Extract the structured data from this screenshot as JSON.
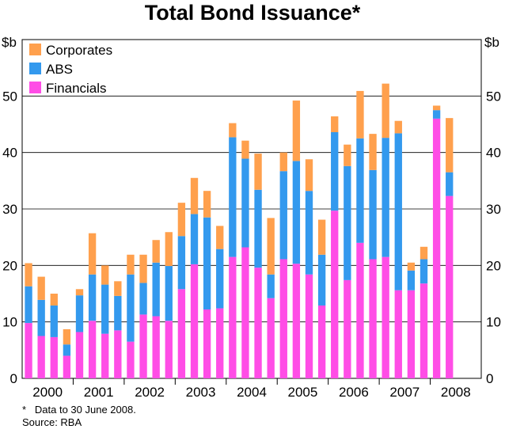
{
  "chart_data": {
    "type": "bar",
    "stacked": true,
    "title": "Total Bond Issuance*",
    "ylabel_left": "$b",
    "ylabel_right": "$b",
    "ylim": [
      0,
      60
    ],
    "yticks": [
      0,
      10,
      20,
      30,
      40,
      50
    ],
    "year_labels": [
      "2000",
      "2001",
      "2002",
      "2003",
      "2004",
      "2005",
      "2006",
      "2007",
      "2008"
    ],
    "quarters_per_year": 4,
    "series": [
      {
        "name": "Financials",
        "color": "#ff4de6",
        "values": [
          9.8,
          7.5,
          7.3,
          4.0,
          8.2,
          10.2,
          7.9,
          8.5,
          6.5,
          11.3,
          11.0,
          10.2,
          15.8,
          20.2,
          12.2,
          12.4,
          21.5,
          23.2,
          19.6,
          14.2,
          21.1,
          20.3,
          18.4,
          12.9,
          29.7,
          17.4,
          24.0,
          21.1,
          21.5,
          15.6,
          15.6,
          16.8,
          46.0,
          32.3
        ]
      },
      {
        "name": "ABS",
        "color": "#3399ee",
        "values": [
          6.5,
          6.4,
          5.6,
          2.0,
          6.5,
          8.2,
          8.7,
          6.1,
          11.9,
          5.6,
          9.5,
          9.7,
          9.4,
          8.9,
          16.3,
          10.5,
          21.2,
          15.7,
          13.8,
          4.2,
          15.6,
          18.2,
          14.8,
          9.0,
          13.9,
          20.2,
          18.5,
          15.8,
          21.1,
          27.8,
          3.5,
          4.3,
          1.5,
          4.2
        ]
      },
      {
        "name": "Corporates",
        "color": "#ffa04d",
        "values": [
          4.1,
          4.1,
          2.1,
          2.7,
          1.1,
          7.3,
          3.4,
          2.6,
          3.5,
          5.0,
          4.0,
          6.0,
          5.9,
          6.4,
          4.7,
          4.1,
          2.5,
          3.2,
          6.4,
          10.0,
          3.3,
          10.7,
          5.6,
          6.2,
          2.8,
          3.8,
          8.4,
          6.4,
          9.6,
          2.2,
          1.4,
          2.2,
          0.8,
          9.6
        ]
      }
    ],
    "legend_order": [
      "Corporates",
      "ABS",
      "Financials"
    ],
    "legend_position": "top-left"
  },
  "footnotes": {
    "asterisk_marker": "*",
    "asterisk_text": "Data to 30 June 2008.",
    "source": "Source: RBA"
  }
}
